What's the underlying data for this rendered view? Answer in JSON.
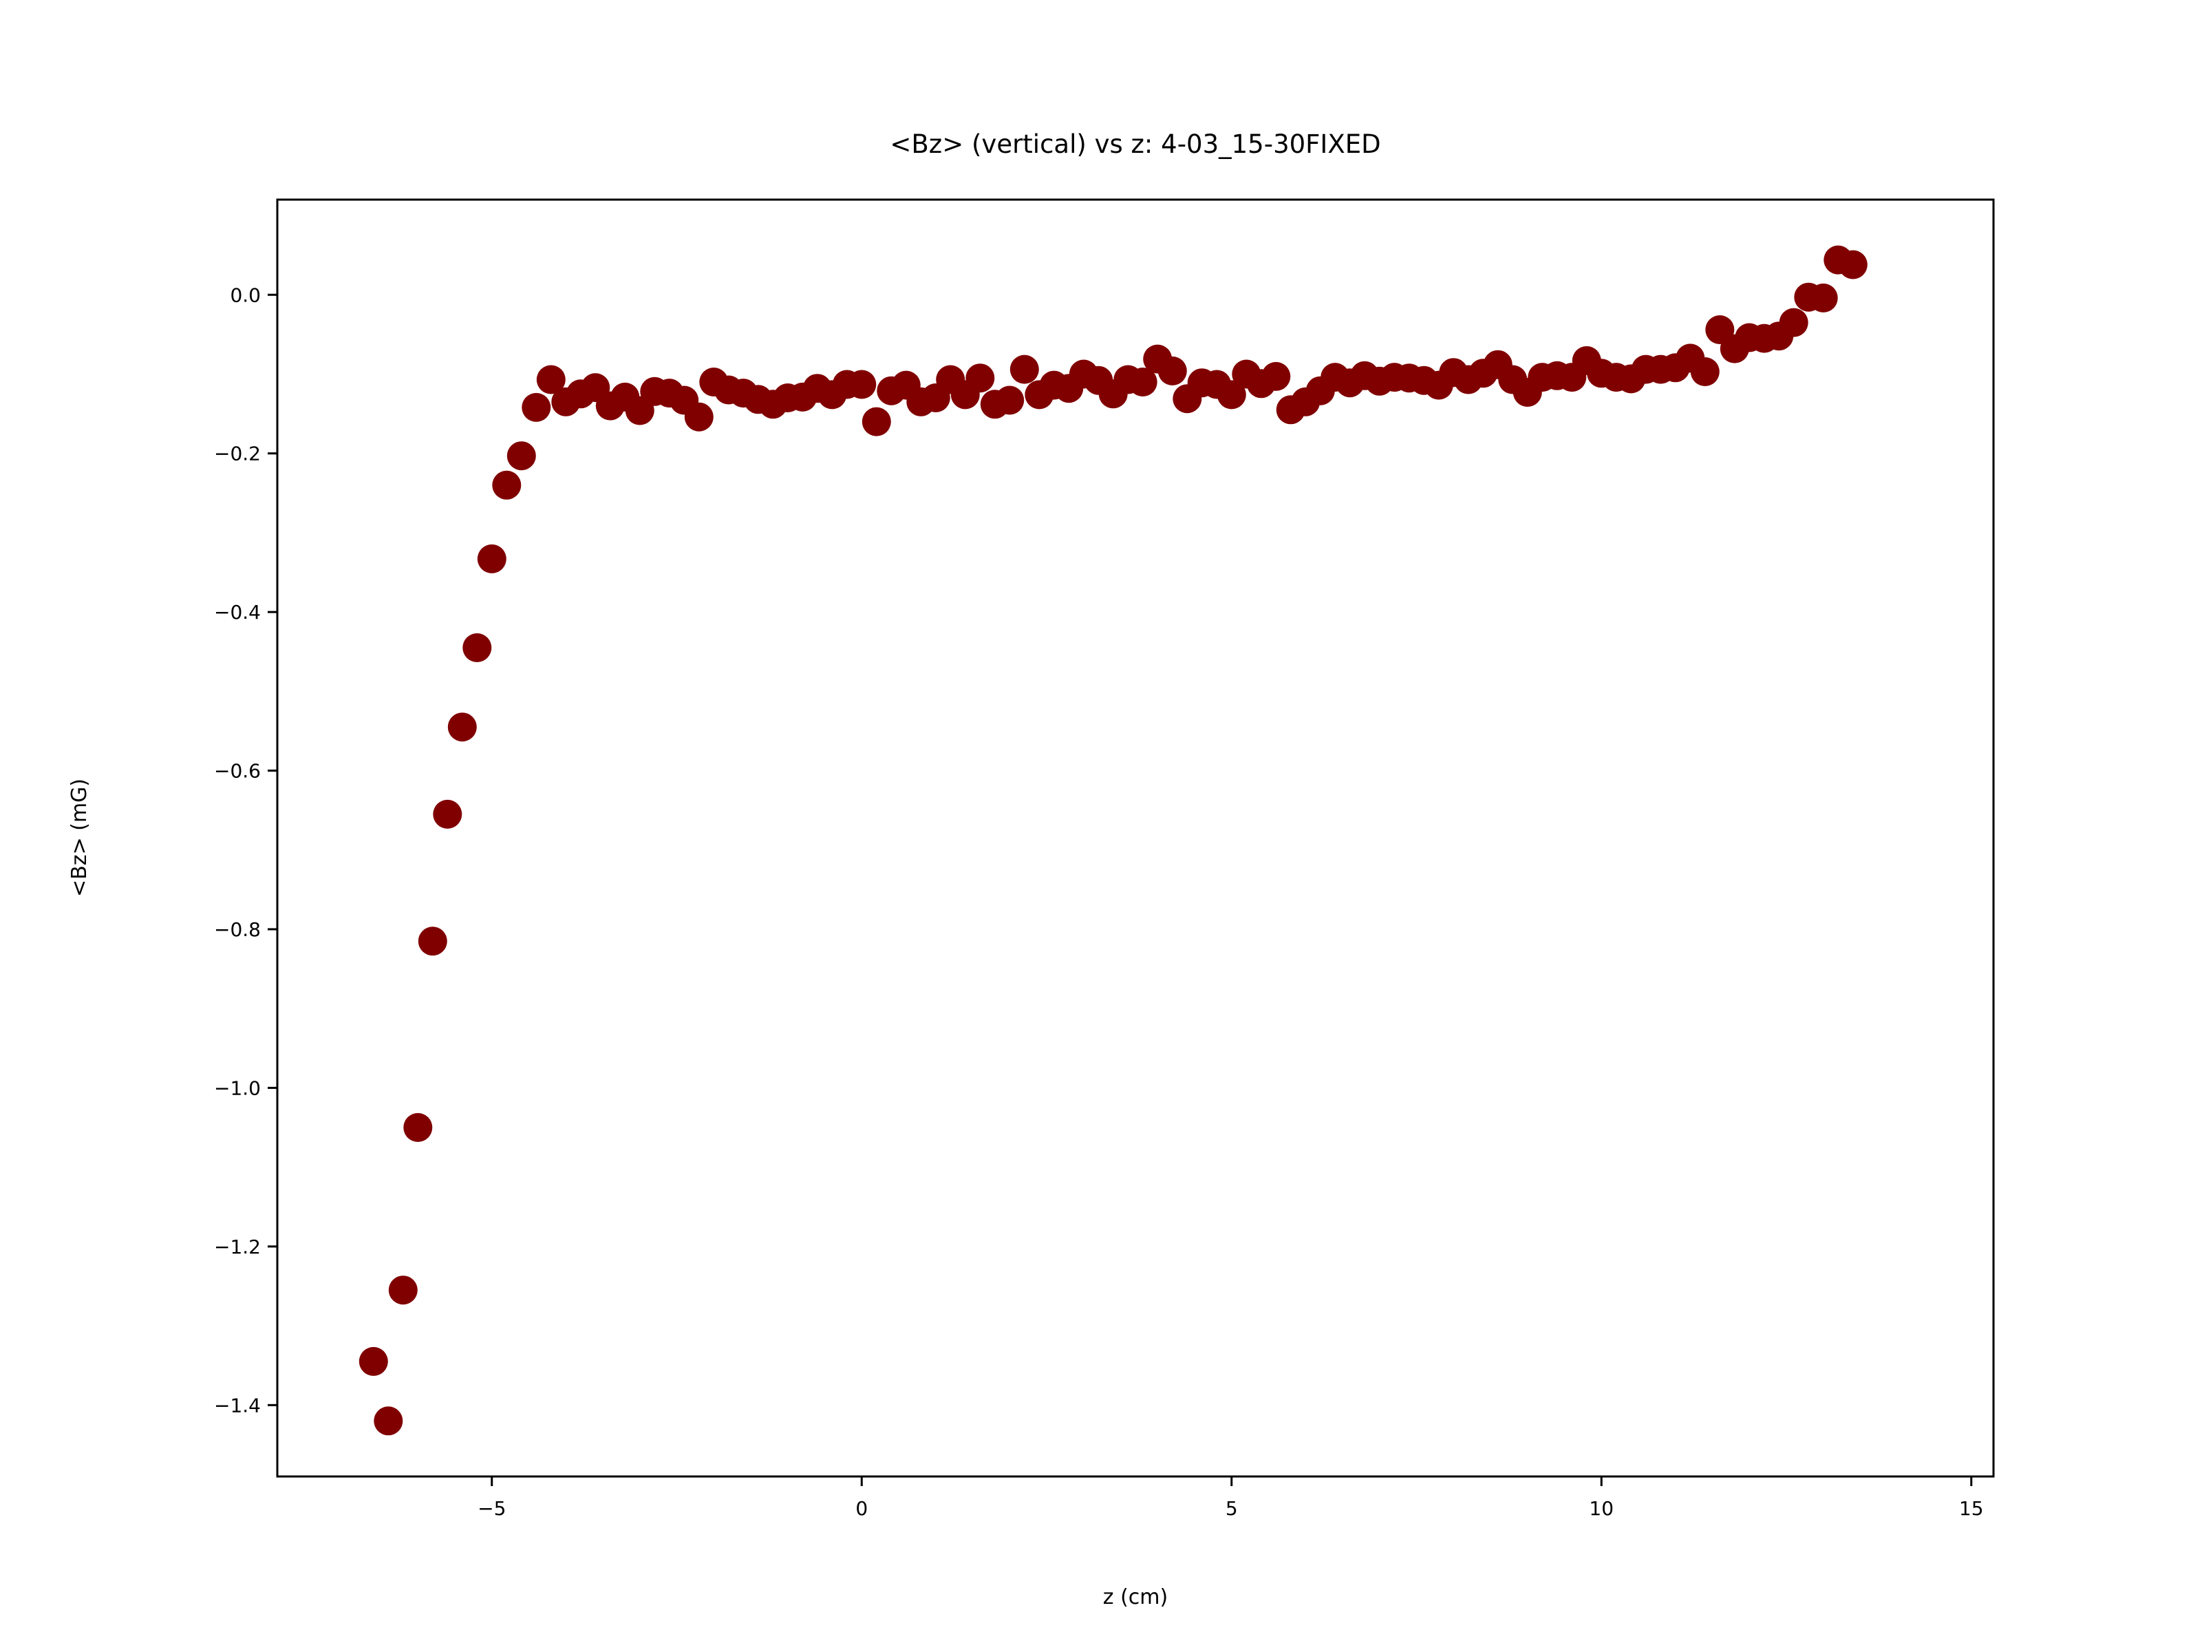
{
  "chart_data": {
    "type": "scatter",
    "title": "<Bz> (vertical) vs z: 4-03_15-30FIXED",
    "xlabel": "z (cm)",
    "ylabel": "<Bz> (mG)",
    "xlim": [
      -7.9,
      15.3
    ],
    "ylim": [
      -1.49,
      0.12
    ],
    "xticks": [
      -5,
      0,
      5,
      10,
      15
    ],
    "xtick_labels": [
      "−5",
      "0",
      "5",
      "10",
      "15"
    ],
    "yticks": [
      0.0,
      -0.2,
      -0.4,
      -0.6,
      -0.8,
      -1.0,
      -1.2,
      -1.4
    ],
    "ytick_labels": [
      "0.0",
      "−0.2",
      "−0.4",
      "−0.6",
      "−0.8",
      "−1.0",
      "−1.2",
      "−1.4"
    ],
    "grid": false,
    "legend": false,
    "marker_color": "#800000",
    "points": [
      [
        -6.6,
        -1.345
      ],
      [
        -6.4,
        -1.42
      ],
      [
        -6.2,
        -1.255
      ],
      [
        -6.0,
        -1.05
      ],
      [
        -5.8,
        -0.815
      ],
      [
        -5.6,
        -0.655
      ],
      [
        -5.4,
        -0.545
      ],
      [
        -5.2,
        -0.445
      ],
      [
        -5.0,
        -0.333
      ],
      [
        -4.8,
        -0.24
      ],
      [
        -4.6,
        -0.203
      ],
      [
        -4.4,
        -0.142
      ],
      [
        -4.2,
        -0.107
      ],
      [
        -4.0,
        -0.135
      ],
      [
        -3.8,
        -0.125
      ],
      [
        -3.6,
        -0.117
      ],
      [
        -3.4,
        -0.14
      ],
      [
        -3.2,
        -0.129
      ],
      [
        -3.0,
        -0.146
      ],
      [
        -2.8,
        -0.122
      ],
      [
        -2.6,
        -0.124
      ],
      [
        -2.4,
        -0.133
      ],
      [
        -2.2,
        -0.154
      ],
      [
        -2.0,
        -0.11
      ],
      [
        -1.8,
        -0.12
      ],
      [
        -1.6,
        -0.124
      ],
      [
        -1.4,
        -0.132
      ],
      [
        -1.2,
        -0.138
      ],
      [
        -1.0,
        -0.13
      ],
      [
        -0.8,
        -0.129
      ],
      [
        -0.6,
        -0.118
      ],
      [
        -0.4,
        -0.126
      ],
      [
        -0.2,
        -0.113
      ],
      [
        0.0,
        -0.113
      ],
      [
        0.2,
        -0.16
      ],
      [
        0.4,
        -0.121
      ],
      [
        0.6,
        -0.114
      ],
      [
        0.8,
        -0.135
      ],
      [
        1.0,
        -0.13
      ],
      [
        1.2,
        -0.107
      ],
      [
        1.4,
        -0.126
      ],
      [
        1.6,
        -0.105
      ],
      [
        1.8,
        -0.138
      ],
      [
        2.0,
        -0.133
      ],
      [
        2.2,
        -0.094
      ],
      [
        2.4,
        -0.126
      ],
      [
        2.6,
        -0.114
      ],
      [
        2.8,
        -0.118
      ],
      [
        3.0,
        -0.1
      ],
      [
        3.2,
        -0.108
      ],
      [
        3.4,
        -0.125
      ],
      [
        3.6,
        -0.107
      ],
      [
        3.8,
        -0.11
      ],
      [
        4.0,
        -0.081
      ],
      [
        4.2,
        -0.096
      ],
      [
        4.4,
        -0.131
      ],
      [
        4.6,
        -0.111
      ],
      [
        4.8,
        -0.113
      ],
      [
        5.0,
        -0.126
      ],
      [
        5.2,
        -0.1
      ],
      [
        5.4,
        -0.112
      ],
      [
        5.6,
        -0.103
      ],
      [
        5.8,
        -0.145
      ],
      [
        6.0,
        -0.135
      ],
      [
        6.2,
        -0.121
      ],
      [
        6.4,
        -0.104
      ],
      [
        6.6,
        -0.111
      ],
      [
        6.8,
        -0.102
      ],
      [
        7.0,
        -0.109
      ],
      [
        7.2,
        -0.104
      ],
      [
        7.4,
        -0.105
      ],
      [
        7.6,
        -0.108
      ],
      [
        7.8,
        -0.114
      ],
      [
        8.0,
        -0.098
      ],
      [
        8.2,
        -0.107
      ],
      [
        8.4,
        -0.099
      ],
      [
        8.6,
        -0.088
      ],
      [
        8.8,
        -0.107
      ],
      [
        9.0,
        -0.123
      ],
      [
        9.2,
        -0.104
      ],
      [
        9.4,
        -0.102
      ],
      [
        9.6,
        -0.104
      ],
      [
        9.8,
        -0.083
      ],
      [
        10.0,
        -0.099
      ],
      [
        10.2,
        -0.104
      ],
      [
        10.4,
        -0.106
      ],
      [
        10.6,
        -0.094
      ],
      [
        10.8,
        -0.094
      ],
      [
        11.0,
        -0.092
      ],
      [
        11.2,
        -0.08
      ],
      [
        11.4,
        -0.097
      ],
      [
        11.6,
        -0.044
      ],
      [
        11.8,
        -0.068
      ],
      [
        12.0,
        -0.054
      ],
      [
        12.2,
        -0.055
      ],
      [
        12.4,
        -0.052
      ],
      [
        12.6,
        -0.035
      ],
      [
        12.8,
        -0.003
      ],
      [
        13.0,
        -0.004
      ],
      [
        13.2,
        0.044
      ],
      [
        13.4,
        0.038
      ]
    ]
  }
}
